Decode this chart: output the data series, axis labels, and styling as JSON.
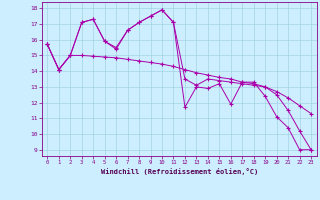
{
  "xlabel": "Windchill (Refroidissement éolien,°C)",
  "bg_color": "#cceeff",
  "grid_color": "#99ccdd",
  "line_color": "#aa00aa",
  "xlim_min": -0.5,
  "xlim_max": 23.5,
  "ylim_min": 8.6,
  "ylim_max": 18.4,
  "yticks": [
    9,
    10,
    11,
    12,
    13,
    14,
    15,
    16,
    17,
    18
  ],
  "xticks": [
    0,
    1,
    2,
    3,
    4,
    5,
    6,
    7,
    8,
    9,
    10,
    11,
    12,
    13,
    14,
    15,
    16,
    17,
    18,
    19,
    20,
    21,
    22,
    23
  ],
  "line1_x": [
    0,
    1,
    2,
    3,
    4,
    5,
    6,
    7,
    8,
    9,
    10,
    11,
    12,
    13,
    14,
    15,
    16,
    17,
    18,
    19,
    20,
    21,
    22,
    23
  ],
  "line1_y": [
    15.7,
    14.1,
    15.0,
    17.1,
    17.3,
    15.9,
    15.4,
    16.6,
    17.1,
    17.5,
    17.9,
    17.1,
    11.7,
    13.0,
    12.9,
    13.2,
    11.9,
    13.3,
    13.3,
    12.4,
    11.1,
    10.4,
    9.0,
    9.0
  ],
  "line2_x": [
    0,
    1,
    2,
    3,
    4,
    5,
    6,
    7,
    8,
    9,
    10,
    11,
    12,
    13,
    14,
    15,
    16,
    17,
    18,
    19,
    20,
    21,
    22,
    23
  ],
  "line2_y": [
    15.7,
    14.1,
    15.0,
    17.1,
    17.3,
    15.9,
    15.5,
    16.6,
    17.1,
    17.5,
    17.9,
    17.1,
    13.5,
    13.1,
    13.5,
    13.4,
    13.3,
    13.2,
    13.1,
    13.0,
    12.5,
    11.5,
    10.2,
    9.0
  ],
  "line3_x": [
    0,
    1,
    2,
    3,
    4,
    5,
    6,
    7,
    8,
    9,
    10,
    11,
    12,
    13,
    14,
    15,
    16,
    17,
    18,
    19,
    20,
    21,
    22,
    23
  ],
  "line3_y": [
    15.7,
    14.1,
    15.0,
    15.0,
    14.95,
    14.9,
    14.85,
    14.75,
    14.65,
    14.55,
    14.45,
    14.3,
    14.1,
    13.9,
    13.75,
    13.6,
    13.5,
    13.3,
    13.2,
    13.0,
    12.7,
    12.3,
    11.8,
    11.3
  ]
}
